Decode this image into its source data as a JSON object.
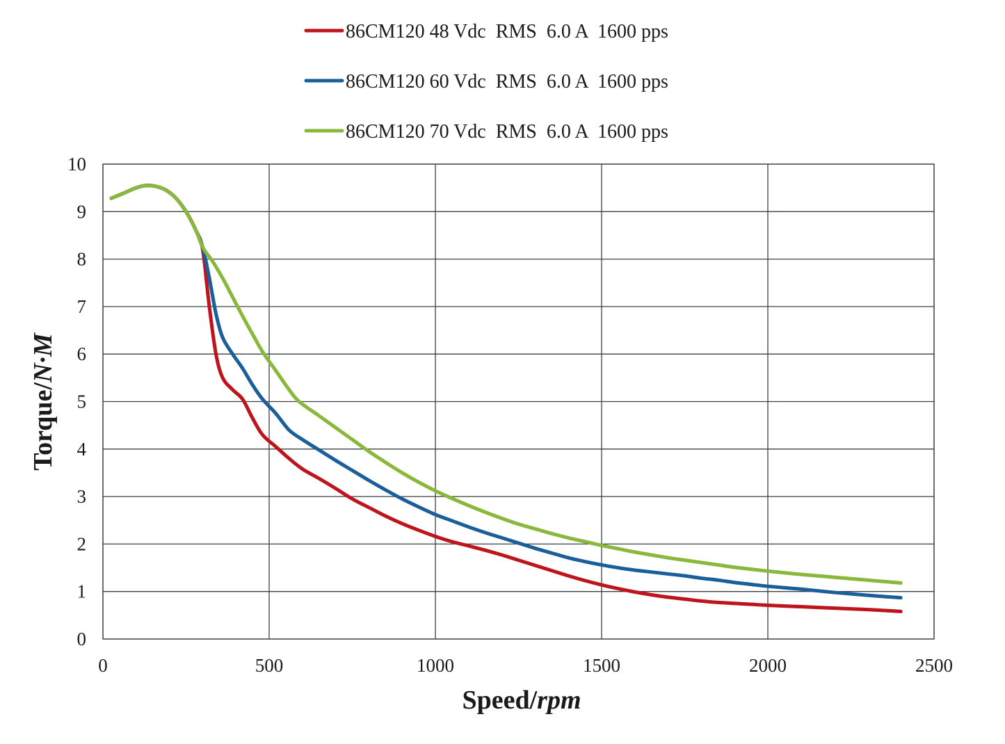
{
  "chart_data": {
    "type": "line",
    "title": "",
    "xlabel": "Speed/",
    "xlabel_unit": "rpm",
    "ylabel": "Torque/",
    "ylabel_unit": "N·M",
    "xlim": [
      0,
      2500
    ],
    "ylim": [
      0,
      10
    ],
    "x_ticks": [
      0,
      500,
      1000,
      1500,
      2000,
      2500
    ],
    "y_ticks": [
      0,
      1,
      2,
      3,
      4,
      5,
      6,
      7,
      8,
      9,
      10
    ],
    "x_tick_labels": [
      "0",
      "500",
      "1000",
      "1500",
      "2000",
      "2500"
    ],
    "y_tick_labels": [
      "0",
      "1",
      "2",
      "3",
      "4",
      "5",
      "6",
      "7",
      "8",
      "9",
      "10"
    ],
    "grid": true,
    "legend_position": "top-center",
    "series": [
      {
        "name": "86CM120 48 Vdc  RMS  6.0 A  1600 pps",
        "color": "#c0141c",
        "points": [
          [
            25,
            9.28
          ],
          [
            60,
            9.38
          ],
          [
            100,
            9.5
          ],
          [
            130,
            9.55
          ],
          [
            160,
            9.53
          ],
          [
            190,
            9.45
          ],
          [
            220,
            9.28
          ],
          [
            250,
            9.0
          ],
          [
            280,
            8.6
          ],
          [
            300,
            8.2
          ],
          [
            320,
            7.0
          ],
          [
            340,
            6.0
          ],
          [
            360,
            5.5
          ],
          [
            390,
            5.25
          ],
          [
            420,
            5.05
          ],
          [
            450,
            4.65
          ],
          [
            480,
            4.3
          ],
          [
            520,
            4.05
          ],
          [
            560,
            3.8
          ],
          [
            600,
            3.58
          ],
          [
            650,
            3.38
          ],
          [
            700,
            3.17
          ],
          [
            750,
            2.95
          ],
          [
            800,
            2.77
          ],
          [
            850,
            2.59
          ],
          [
            900,
            2.43
          ],
          [
            950,
            2.29
          ],
          [
            1000,
            2.16
          ],
          [
            1050,
            2.05
          ],
          [
            1100,
            1.96
          ],
          [
            1150,
            1.87
          ],
          [
            1200,
            1.77
          ],
          [
            1250,
            1.66
          ],
          [
            1300,
            1.55
          ],
          [
            1350,
            1.44
          ],
          [
            1400,
            1.33
          ],
          [
            1450,
            1.23
          ],
          [
            1500,
            1.14
          ],
          [
            1550,
            1.06
          ],
          [
            1600,
            0.99
          ],
          [
            1650,
            0.93
          ],
          [
            1700,
            0.88
          ],
          [
            1750,
            0.84
          ],
          [
            1800,
            0.8
          ],
          [
            1850,
            0.77
          ],
          [
            1900,
            0.75
          ],
          [
            1950,
            0.73
          ],
          [
            2000,
            0.71
          ],
          [
            2100,
            0.68
          ],
          [
            2200,
            0.65
          ],
          [
            2300,
            0.62
          ],
          [
            2400,
            0.58
          ]
        ]
      },
      {
        "name": "86CM120 60 Vdc  RMS  6.0 A  1600 pps",
        "color": "#1a5e9a",
        "points": [
          [
            25,
            9.28
          ],
          [
            60,
            9.38
          ],
          [
            100,
            9.5
          ],
          [
            130,
            9.55
          ],
          [
            160,
            9.53
          ],
          [
            190,
            9.45
          ],
          [
            220,
            9.28
          ],
          [
            250,
            9.0
          ],
          [
            280,
            8.6
          ],
          [
            300,
            8.25
          ],
          [
            320,
            7.6
          ],
          [
            340,
            6.85
          ],
          [
            360,
            6.35
          ],
          [
            390,
            6.0
          ],
          [
            420,
            5.7
          ],
          [
            450,
            5.35
          ],
          [
            480,
            5.05
          ],
          [
            520,
            4.75
          ],
          [
            560,
            4.4
          ],
          [
            600,
            4.2
          ],
          [
            650,
            3.98
          ],
          [
            700,
            3.76
          ],
          [
            750,
            3.55
          ],
          [
            800,
            3.34
          ],
          [
            850,
            3.14
          ],
          [
            900,
            2.95
          ],
          [
            950,
            2.78
          ],
          [
            1000,
            2.62
          ],
          [
            1050,
            2.49
          ],
          [
            1100,
            2.36
          ],
          [
            1150,
            2.24
          ],
          [
            1200,
            2.13
          ],
          [
            1250,
            2.02
          ],
          [
            1300,
            1.91
          ],
          [
            1350,
            1.81
          ],
          [
            1400,
            1.71
          ],
          [
            1450,
            1.63
          ],
          [
            1500,
            1.56
          ],
          [
            1550,
            1.5
          ],
          [
            1600,
            1.45
          ],
          [
            1650,
            1.41
          ],
          [
            1700,
            1.37
          ],
          [
            1750,
            1.33
          ],
          [
            1800,
            1.28
          ],
          [
            1850,
            1.24
          ],
          [
            1900,
            1.19
          ],
          [
            1950,
            1.15
          ],
          [
            2000,
            1.11
          ],
          [
            2100,
            1.05
          ],
          [
            2200,
            0.98
          ],
          [
            2300,
            0.92
          ],
          [
            2400,
            0.87
          ]
        ]
      },
      {
        "name": "86CM120 70 Vdc  RMS  6.0 A  1600 pps",
        "color": "#8ab83a",
        "points": [
          [
            25,
            9.28
          ],
          [
            60,
            9.38
          ],
          [
            100,
            9.5
          ],
          [
            130,
            9.55
          ],
          [
            160,
            9.53
          ],
          [
            190,
            9.45
          ],
          [
            220,
            9.28
          ],
          [
            250,
            9.0
          ],
          [
            280,
            8.6
          ],
          [
            300,
            8.25
          ],
          [
            330,
            7.95
          ],
          [
            360,
            7.6
          ],
          [
            390,
            7.2
          ],
          [
            420,
            6.8
          ],
          [
            450,
            6.42
          ],
          [
            480,
            6.05
          ],
          [
            520,
            5.65
          ],
          [
            560,
            5.25
          ],
          [
            590,
            5.0
          ],
          [
            650,
            4.7
          ],
          [
            700,
            4.45
          ],
          [
            750,
            4.2
          ],
          [
            800,
            3.95
          ],
          [
            850,
            3.72
          ],
          [
            900,
            3.5
          ],
          [
            950,
            3.3
          ],
          [
            1000,
            3.12
          ],
          [
            1050,
            2.96
          ],
          [
            1100,
            2.81
          ],
          [
            1150,
            2.67
          ],
          [
            1200,
            2.54
          ],
          [
            1250,
            2.42
          ],
          [
            1300,
            2.32
          ],
          [
            1350,
            2.22
          ],
          [
            1400,
            2.13
          ],
          [
            1450,
            2.05
          ],
          [
            1500,
            1.97
          ],
          [
            1550,
            1.9
          ],
          [
            1600,
            1.83
          ],
          [
            1650,
            1.77
          ],
          [
            1700,
            1.71
          ],
          [
            1750,
            1.66
          ],
          [
            1800,
            1.61
          ],
          [
            1850,
            1.56
          ],
          [
            1900,
            1.51
          ],
          [
            1950,
            1.47
          ],
          [
            2000,
            1.43
          ],
          [
            2100,
            1.36
          ],
          [
            2200,
            1.3
          ],
          [
            2300,
            1.24
          ],
          [
            2400,
            1.18
          ]
        ]
      }
    ]
  }
}
